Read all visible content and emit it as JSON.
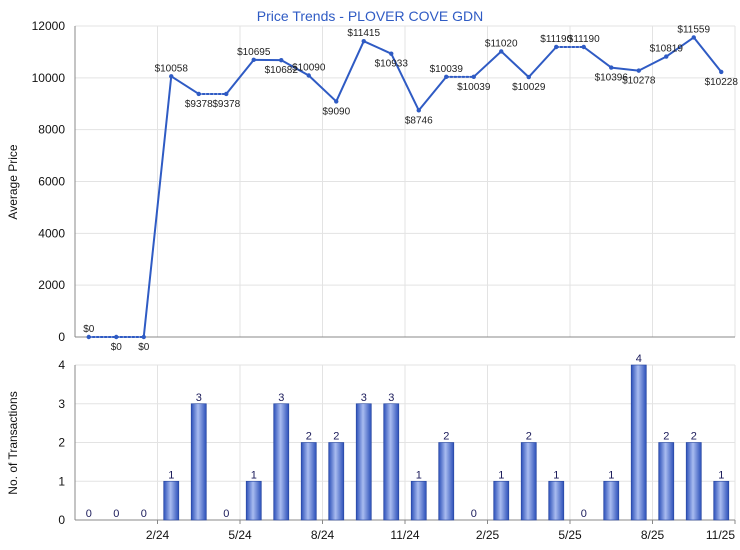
{
  "chart_data": [
    {
      "type": "line",
      "title": "Price Trends - PLOVER COVE GDN",
      "ylabel": "Average Price",
      "ylim": [
        0,
        12000
      ],
      "yticks": [
        0,
        2000,
        4000,
        6000,
        8000,
        10000,
        12000
      ],
      "grid": true,
      "series": [
        {
          "values": [
            0,
            0,
            0,
            10058,
            9378,
            9378,
            10695,
            10682,
            10090,
            9090,
            11415,
            10933,
            8746,
            10039,
            10039,
            11020,
            10029,
            11190,
            11190,
            10396,
            10278,
            10819,
            11559,
            10228
          ],
          "labels": [
            "$0",
            "$0",
            "$0",
            "$10058",
            "$9378",
            "$9378",
            "$10695",
            "$10682",
            "$10090",
            "$9090",
            "$11415",
            "$10933",
            "$8746",
            "$10039",
            "$10039",
            "$11020",
            "$10029",
            "$11190",
            "$11190",
            "$10396",
            "$10278",
            "$10819",
            "$11559",
            "$10228"
          ],
          "dotted_segments": [
            0,
            1,
            4,
            13,
            17
          ],
          "color": "#2F5BC4"
        }
      ]
    },
    {
      "type": "bar",
      "ylabel": "No. of Transactions",
      "ylim": [
        0,
        4
      ],
      "yticks": [
        0,
        1,
        2,
        3,
        4
      ],
      "xticks": [
        {
          "index": 2,
          "label": "2/24"
        },
        {
          "index": 5,
          "label": "5/24"
        },
        {
          "index": 8,
          "label": "8/24"
        },
        {
          "index": 11,
          "label": "11/24"
        },
        {
          "index": 14,
          "label": "2/25"
        },
        {
          "index": 17,
          "label": "5/25"
        },
        {
          "index": 20,
          "label": "8/25"
        },
        {
          "index": 23,
          "label": "11/25"
        }
      ],
      "values": [
        0,
        0,
        0,
        1,
        3,
        0,
        1,
        3,
        2,
        2,
        3,
        3,
        1,
        2,
        0,
        1,
        2,
        1,
        0,
        1,
        4,
        2,
        2,
        1
      ],
      "color": "#3A5FC8"
    }
  ],
  "colors": {
    "line": "#2F5BC4",
    "bar_dark": "#2B4FB8",
    "bar_light": "#A9BCF0",
    "grid": "#E3E3E3",
    "axis": "#888888"
  }
}
